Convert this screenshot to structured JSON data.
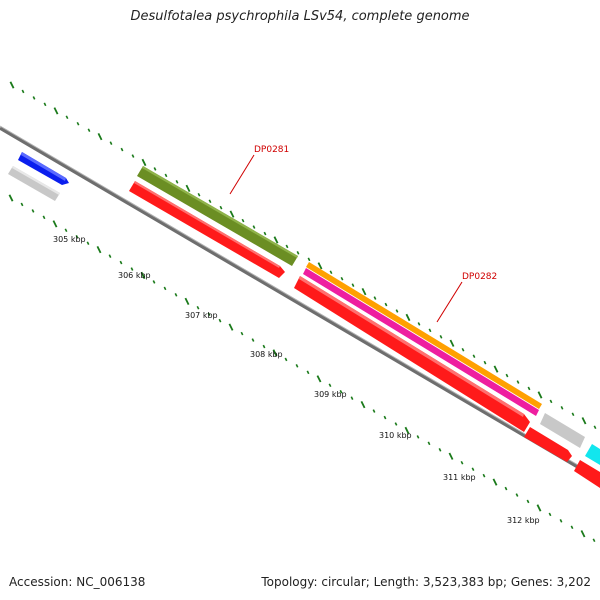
{
  "title": "Desulfotalea psychrophila LSv54, complete genome",
  "footer": {
    "accession": "Accession: NC_006138",
    "summary": "Topology: circular; Length: 3,523,383 bp; Genes: 3,202"
  },
  "scale": {
    "labels": [
      "305 kbp",
      "306 kbp",
      "307 kbp",
      "308 kbp",
      "309 kbp",
      "310 kbp",
      "311 kbp",
      "312 kbp"
    ]
  },
  "gene_labels": {
    "first": "DP0281",
    "second": "DP0282"
  },
  "colors": {
    "backbone": "#8a8a8a",
    "tick": "#1a7a1a",
    "label_red": "#d00000",
    "feature_red": "#ff1a1a",
    "feature_olive": "#6b8e23",
    "feature_orange": "#ffa000",
    "feature_magenta": "#ee1ea0",
    "feature_blue": "#0a1eee",
    "feature_gray": "#c8c8c8",
    "feature_cyan": "#12e6ee"
  }
}
